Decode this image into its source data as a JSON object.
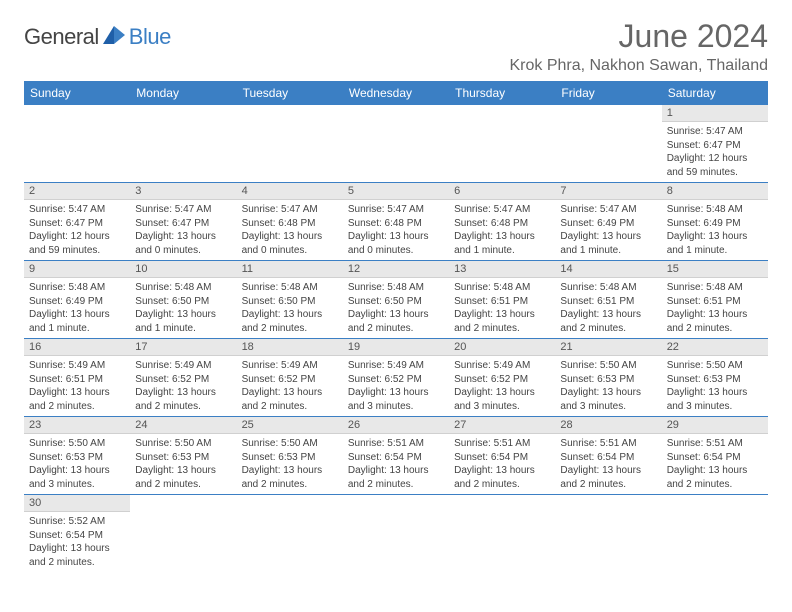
{
  "logo": {
    "word1": "General",
    "word2": "Blue"
  },
  "title": "June 2024",
  "location": "Krok Phra, Nakhon Sawan, Thailand",
  "colors": {
    "header_bg": "#3b7fc4",
    "header_fg": "#ffffff",
    "daybar_bg": "#e8e8e8",
    "rule": "#3b7fc4"
  },
  "weekdays": [
    "Sunday",
    "Monday",
    "Tuesday",
    "Wednesday",
    "Thursday",
    "Friday",
    "Saturday"
  ],
  "weeks": [
    [
      null,
      null,
      null,
      null,
      null,
      null,
      {
        "n": "1",
        "sr": "5:47 AM",
        "ss": "6:47 PM",
        "dl": "12 hours and 59 minutes."
      }
    ],
    [
      {
        "n": "2",
        "sr": "5:47 AM",
        "ss": "6:47 PM",
        "dl": "12 hours and 59 minutes."
      },
      {
        "n": "3",
        "sr": "5:47 AM",
        "ss": "6:47 PM",
        "dl": "13 hours and 0 minutes."
      },
      {
        "n": "4",
        "sr": "5:47 AM",
        "ss": "6:48 PM",
        "dl": "13 hours and 0 minutes."
      },
      {
        "n": "5",
        "sr": "5:47 AM",
        "ss": "6:48 PM",
        "dl": "13 hours and 0 minutes."
      },
      {
        "n": "6",
        "sr": "5:47 AM",
        "ss": "6:48 PM",
        "dl": "13 hours and 1 minute."
      },
      {
        "n": "7",
        "sr": "5:47 AM",
        "ss": "6:49 PM",
        "dl": "13 hours and 1 minute."
      },
      {
        "n": "8",
        "sr": "5:48 AM",
        "ss": "6:49 PM",
        "dl": "13 hours and 1 minute."
      }
    ],
    [
      {
        "n": "9",
        "sr": "5:48 AM",
        "ss": "6:49 PM",
        "dl": "13 hours and 1 minute."
      },
      {
        "n": "10",
        "sr": "5:48 AM",
        "ss": "6:50 PM",
        "dl": "13 hours and 1 minute."
      },
      {
        "n": "11",
        "sr": "5:48 AM",
        "ss": "6:50 PM",
        "dl": "13 hours and 2 minutes."
      },
      {
        "n": "12",
        "sr": "5:48 AM",
        "ss": "6:50 PM",
        "dl": "13 hours and 2 minutes."
      },
      {
        "n": "13",
        "sr": "5:48 AM",
        "ss": "6:51 PM",
        "dl": "13 hours and 2 minutes."
      },
      {
        "n": "14",
        "sr": "5:48 AM",
        "ss": "6:51 PM",
        "dl": "13 hours and 2 minutes."
      },
      {
        "n": "15",
        "sr": "5:48 AM",
        "ss": "6:51 PM",
        "dl": "13 hours and 2 minutes."
      }
    ],
    [
      {
        "n": "16",
        "sr": "5:49 AM",
        "ss": "6:51 PM",
        "dl": "13 hours and 2 minutes."
      },
      {
        "n": "17",
        "sr": "5:49 AM",
        "ss": "6:52 PM",
        "dl": "13 hours and 2 minutes."
      },
      {
        "n": "18",
        "sr": "5:49 AM",
        "ss": "6:52 PM",
        "dl": "13 hours and 2 minutes."
      },
      {
        "n": "19",
        "sr": "5:49 AM",
        "ss": "6:52 PM",
        "dl": "13 hours and 3 minutes."
      },
      {
        "n": "20",
        "sr": "5:49 AM",
        "ss": "6:52 PM",
        "dl": "13 hours and 3 minutes."
      },
      {
        "n": "21",
        "sr": "5:50 AM",
        "ss": "6:53 PM",
        "dl": "13 hours and 3 minutes."
      },
      {
        "n": "22",
        "sr": "5:50 AM",
        "ss": "6:53 PM",
        "dl": "13 hours and 3 minutes."
      }
    ],
    [
      {
        "n": "23",
        "sr": "5:50 AM",
        "ss": "6:53 PM",
        "dl": "13 hours and 3 minutes."
      },
      {
        "n": "24",
        "sr": "5:50 AM",
        "ss": "6:53 PM",
        "dl": "13 hours and 2 minutes."
      },
      {
        "n": "25",
        "sr": "5:50 AM",
        "ss": "6:53 PM",
        "dl": "13 hours and 2 minutes."
      },
      {
        "n": "26",
        "sr": "5:51 AM",
        "ss": "6:54 PM",
        "dl": "13 hours and 2 minutes."
      },
      {
        "n": "27",
        "sr": "5:51 AM",
        "ss": "6:54 PM",
        "dl": "13 hours and 2 minutes."
      },
      {
        "n": "28",
        "sr": "5:51 AM",
        "ss": "6:54 PM",
        "dl": "13 hours and 2 minutes."
      },
      {
        "n": "29",
        "sr": "5:51 AM",
        "ss": "6:54 PM",
        "dl": "13 hours and 2 minutes."
      }
    ],
    [
      {
        "n": "30",
        "sr": "5:52 AM",
        "ss": "6:54 PM",
        "dl": "13 hours and 2 minutes."
      },
      null,
      null,
      null,
      null,
      null,
      null
    ]
  ],
  "labels": {
    "sunrise": "Sunrise:",
    "sunset": "Sunset:",
    "daylight": "Daylight:"
  }
}
